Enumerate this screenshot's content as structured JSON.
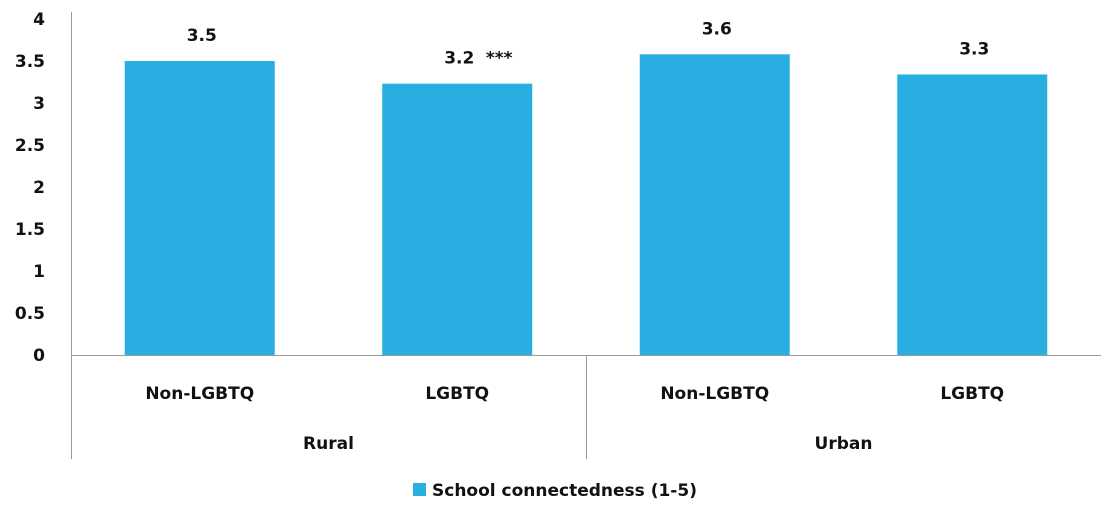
{
  "chart_data": {
    "type": "bar",
    "groups": [
      "Rural",
      "Urban"
    ],
    "categories": [
      "Non-LGBTQ",
      "LGBTQ",
      "Non-LGBTQ",
      "LGBTQ"
    ],
    "series": [
      {
        "name": "School connectedness (1-5)",
        "color": "#29AEE2",
        "values": [
          3.5,
          3.23,
          3.58,
          3.34
        ],
        "labels": [
          "3.5",
          "3.2",
          "3.6",
          "3.3"
        ],
        "annotations": [
          "",
          "***",
          "",
          ""
        ]
      }
    ],
    "yticks": [
      "0",
      "0.5",
      "1",
      "1.5",
      "2",
      "2.5",
      "3",
      "3.5",
      "4"
    ],
    "ylim": [
      0,
      4
    ],
    "grid": false,
    "legend": "bottom"
  }
}
